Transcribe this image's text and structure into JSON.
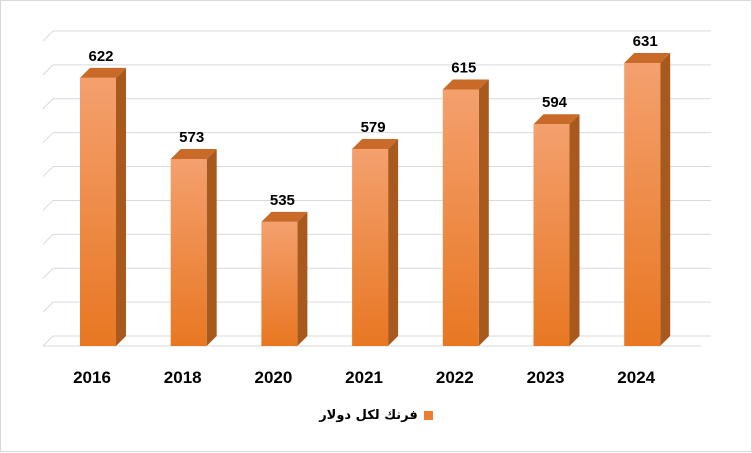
{
  "chart_data": {
    "type": "bar",
    "categories": [
      "2016",
      "2018",
      "2020",
      "2021",
      "2022",
      "2023",
      "2024"
    ],
    "series": [
      {
        "name": "فرنك لكل دولار",
        "values": [
          622,
          573,
          535,
          579,
          615,
          594,
          631
        ]
      }
    ],
    "data_labels": [
      "622",
      "573",
      "535",
      "579",
      "615",
      "594",
      "631"
    ],
    "ylim": [
      460,
      640
    ],
    "grid": true,
    "legend_position": "bottom",
    "colors": {
      "bar_front_top": "#F4A06E",
      "bar_front_bottom": "#E87722",
      "bar_side": "#A85A1E",
      "bar_top": "#C96A28",
      "legend_swatch": "#ED7D31",
      "gridline": "#d9d9d9"
    }
  }
}
